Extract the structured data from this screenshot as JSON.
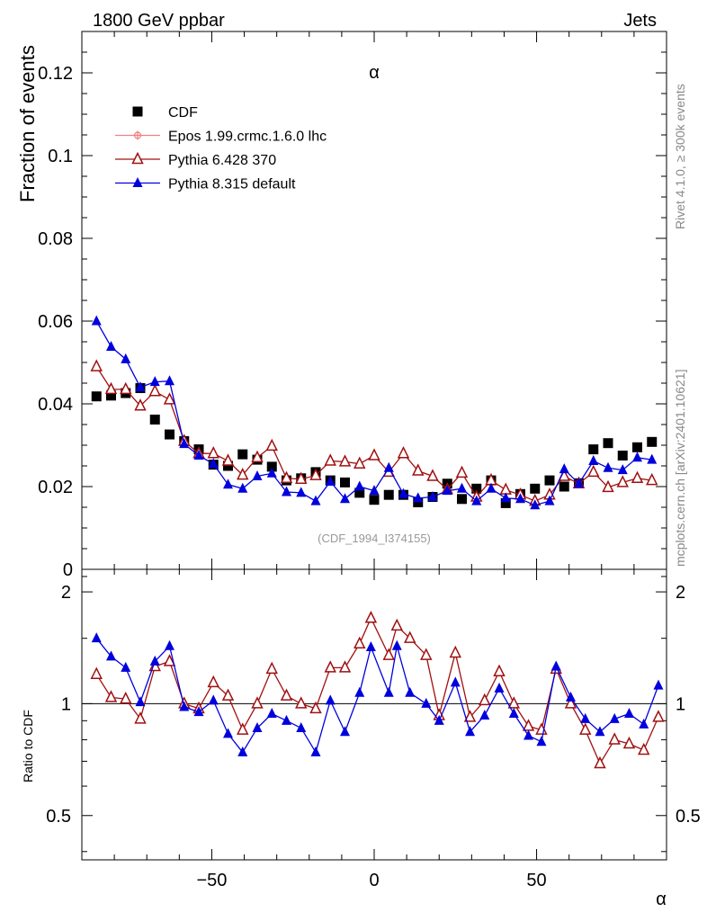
{
  "header": {
    "left": "1800 GeV ppbar",
    "right": "Jets",
    "side_top": "Rivet 4.1.0, ≥ 300k events",
    "side_bottom": "mcplots.cern.ch [arXiv:2401.10621]"
  },
  "chart_data": {
    "type": "scatter",
    "title": "α",
    "xlabel": "α",
    "ylabel": "Fraction of events",
    "ratio_ylabel": "Ratio to CDF",
    "watermark": "(CDF_1994_I374155)",
    "xlim": [
      -90,
      90
    ],
    "ylim": [
      0,
      0.13
    ],
    "ratio_ylim": [
      0.38,
      2.3
    ],
    "xticks": [
      -50,
      0,
      50
    ],
    "xtick_labels": [
      "−50",
      "0",
      "50"
    ],
    "yticks": [
      0,
      0.02,
      0.04,
      0.06,
      0.08,
      0.1,
      0.12
    ],
    "ytick_labels": [
      "0",
      "0.02",
      "0.04",
      "0.06",
      "0.08",
      "0.1",
      "0.12"
    ],
    "ratio_yticks": [
      0.5,
      1,
      2
    ],
    "ratio_ytick_labels": [
      "0.5",
      "1",
      "2"
    ],
    "x": [
      -85.5,
      -81,
      -76.5,
      -72,
      -67.5,
      -63,
      -58.5,
      -54,
      -49.5,
      -45,
      -40.5,
      -36,
      -31.5,
      -27,
      -22.5,
      -18,
      -13.5,
      -9,
      -4.5,
      0,
      4.5,
      9,
      13.5,
      18,
      22.5,
      27,
      31.5,
      36,
      40.5,
      45,
      49.5,
      54,
      58.5,
      63,
      67.5,
      72,
      76.5,
      81,
      85.5
    ],
    "series": [
      {
        "name": "CDF",
        "color": "#000000",
        "marker": "square",
        "values": [
          0.0418,
          0.042,
          0.0426,
          0.0438,
          0.0362,
          0.0326,
          0.031,
          0.029,
          0.0253,
          0.025,
          0.0278,
          0.0265,
          0.0248,
          0.0215,
          0.022,
          0.0235,
          0.0215,
          0.021,
          0.0185,
          0.0168,
          0.018,
          0.018,
          0.0162,
          0.0175,
          0.0207,
          0.017,
          0.0195,
          0.0215,
          0.016,
          0.0182,
          0.0195,
          0.0215,
          0.02,
          0.0208,
          0.029,
          0.0305,
          0.0275,
          0.0295,
          0.0308
        ]
      },
      {
        "name": "Epos 1.99.crmc.1.6.0 lhc",
        "color": "#f08080",
        "marker": "plus-circle",
        "values": []
      },
      {
        "name": "Pythia 6.428 370",
        "color": "#a01010",
        "marker": "triangle-open",
        "values": [
          0.049,
          0.0435,
          0.0435,
          0.0395,
          0.043,
          0.041,
          0.031,
          0.028,
          0.028,
          0.0262,
          0.0228,
          0.027,
          0.0298,
          0.022,
          0.0218,
          0.0227,
          0.0262,
          0.026,
          0.0255,
          0.0275,
          0.0235,
          0.028,
          0.0238,
          0.0225,
          0.0193,
          0.0233,
          0.0175,
          0.0215,
          0.0192,
          0.018,
          0.0165,
          0.018,
          0.0225,
          0.0207,
          0.0235,
          0.0198,
          0.021,
          0.022,
          0.0215
        ]
      },
      {
        "name": "Pythia 8.315 default",
        "color": "#0000dd",
        "marker": "triangle",
        "values": [
          0.06,
          0.0538,
          0.0508,
          0.044,
          0.0453,
          0.0455,
          0.0303,
          0.0275,
          0.0255,
          0.0205,
          0.0195,
          0.0225,
          0.0232,
          0.0187,
          0.0185,
          0.0165,
          0.0212,
          0.017,
          0.02,
          0.019,
          0.0245,
          0.0182,
          0.0172,
          0.0175,
          0.019,
          0.0195,
          0.0165,
          0.0195,
          0.0172,
          0.017,
          0.0155,
          0.0165,
          0.0242,
          0.0207,
          0.0262,
          0.0245,
          0.024,
          0.027,
          0.0265
        ]
      }
    ],
    "ratio_series": [
      {
        "name": "Pythia 6.428 370",
        "color": "#a01010",
        "marker": "triangle-open",
        "values": [
          1.2,
          1.04,
          1.03,
          0.91,
          1.26,
          1.3,
          1.0,
          0.97,
          1.14,
          1.05,
          0.85,
          1.0,
          1.24,
          1.05,
          1.0,
          0.97,
          1.25,
          1.25,
          1.45,
          1.7,
          1.35,
          1.62,
          1.5,
          1.35,
          0.93,
          1.37,
          0.92,
          1.02,
          1.22,
          1.0,
          0.87,
          0.85,
          1.24,
          1.0,
          0.85,
          0.69,
          0.8,
          0.78,
          0.75,
          0.92
        ]
      },
      {
        "name": "Pythia 8.315 default",
        "color": "#0000dd",
        "marker": "triangle",
        "values": [
          1.5,
          1.34,
          1.25,
          1.01,
          1.3,
          1.43,
          0.98,
          0.95,
          1.02,
          0.83,
          0.74,
          0.86,
          0.94,
          0.9,
          0.86,
          0.74,
          1.02,
          0.84,
          1.07,
          1.42,
          1.07,
          1.43,
          1.07,
          1.0,
          0.9,
          1.14,
          0.84,
          0.93,
          1.1,
          0.94,
          0.82,
          0.79,
          1.26,
          1.04,
          0.91,
          0.84,
          0.91,
          0.94,
          0.88,
          1.12
        ]
      }
    ],
    "ratio_x": [
      -85.5,
      -81,
      -76.5,
      -72,
      -67.5,
      -63,
      -58.5,
      -54,
      -49.5,
      -45,
      -40.5,
      -36,
      -31.5,
      -27,
      -22.5,
      -18,
      -13.5,
      -9,
      -4.5,
      -1,
      4.5,
      7,
      11,
      16,
      20,
      25,
      29.5,
      34,
      38.5,
      43,
      47.5,
      51.5,
      56,
      60.5,
      65,
      69.5,
      74,
      78.5,
      83,
      87.5
    ]
  }
}
